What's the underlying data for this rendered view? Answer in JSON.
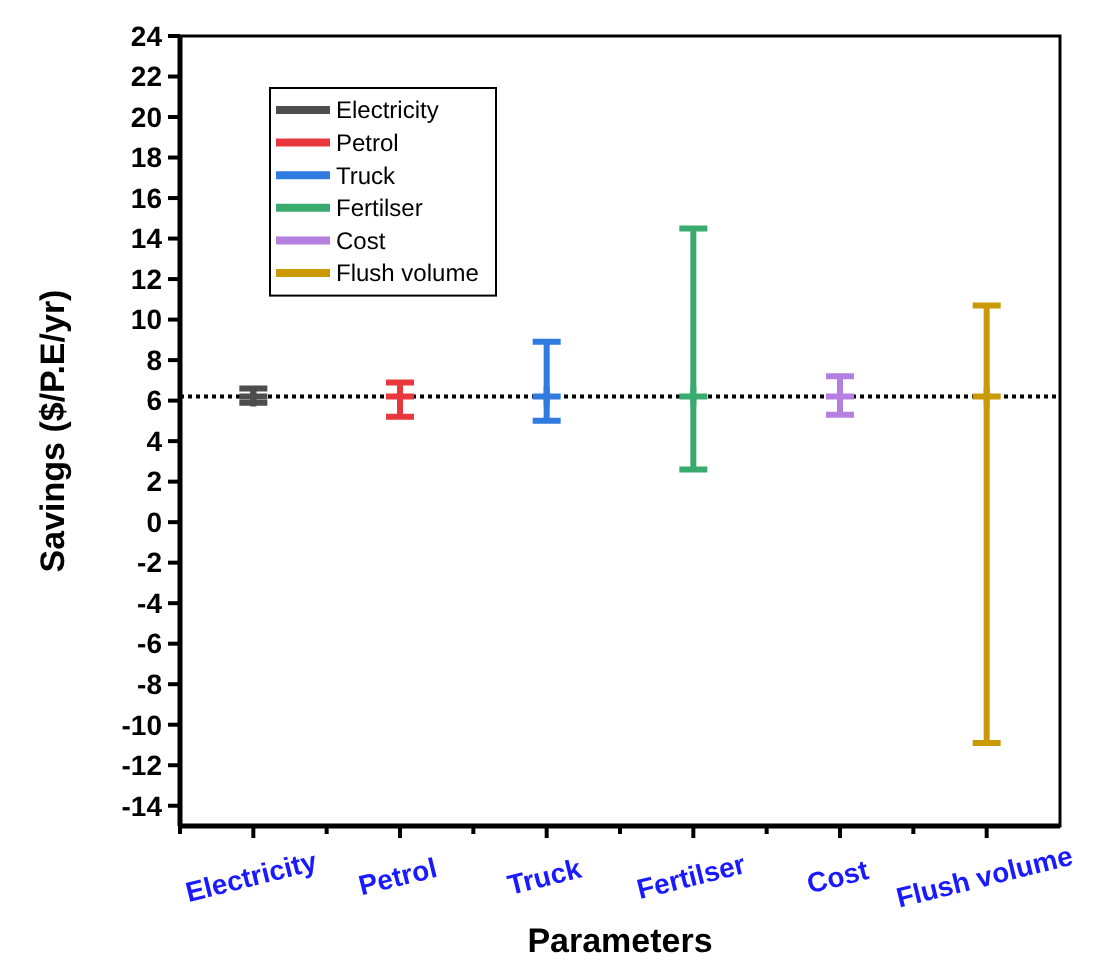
{
  "chart_data": {
    "type": "scatter",
    "xlabel": "Parameters",
    "ylabel": "Savings ($/P.E/yr)",
    "categories": [
      "Electricity",
      "Petrol",
      "Truck",
      "Fertilser",
      "Cost",
      "Flush volume"
    ],
    "series": [
      {
        "name": "Electricity",
        "color": "#4d4d4d",
        "values": [
          6.2,
          null,
          null,
          null,
          null,
          null
        ],
        "errors": [
          [
            5.9,
            6.6
          ],
          null,
          null,
          null,
          null,
          null
        ]
      },
      {
        "name": "Petrol",
        "color": "#e8383d",
        "values": [
          null,
          6.2,
          null,
          null,
          null,
          null
        ],
        "errors": [
          null,
          [
            5.2,
            6.9
          ],
          null,
          null,
          null,
          null
        ]
      },
      {
        "name": "Truck",
        "color": "#2f7be0",
        "values": [
          null,
          null,
          6.2,
          null,
          null,
          null
        ],
        "errors": [
          null,
          null,
          [
            5.0,
            8.9
          ],
          null,
          null,
          null
        ]
      },
      {
        "name": "Fertilser",
        "color": "#3aab6e",
        "values": [
          null,
          null,
          null,
          6.2,
          null,
          null
        ],
        "errors": [
          null,
          null,
          null,
          [
            2.6,
            14.5
          ],
          null,
          null
        ]
      },
      {
        "name": "Cost",
        "color": "#b57fe0",
        "values": [
          null,
          null,
          null,
          null,
          6.2,
          null
        ],
        "errors": [
          null,
          null,
          null,
          null,
          [
            5.3,
            7.2
          ],
          null
        ]
      },
      {
        "name": "Flush volume",
        "color": "#c99a06",
        "values": [
          null,
          null,
          null,
          null,
          null,
          6.2
        ],
        "errors": [
          null,
          null,
          null,
          null,
          null,
          [
            -10.9,
            10.7
          ]
        ]
      }
    ],
    "ylim": [
      -15,
      24
    ],
    "yticks": [
      -14,
      -12,
      -10,
      -8,
      -6,
      -4,
      -2,
      0,
      2,
      4,
      6,
      8,
      10,
      12,
      14,
      16,
      18,
      20,
      22,
      24
    ],
    "ref_lines": [
      {
        "axis": "y",
        "value": 6.2,
        "line_style": "dotted",
        "color": "#000000"
      }
    ],
    "marker": "cross",
    "legend": "top left",
    "grid": false
  }
}
